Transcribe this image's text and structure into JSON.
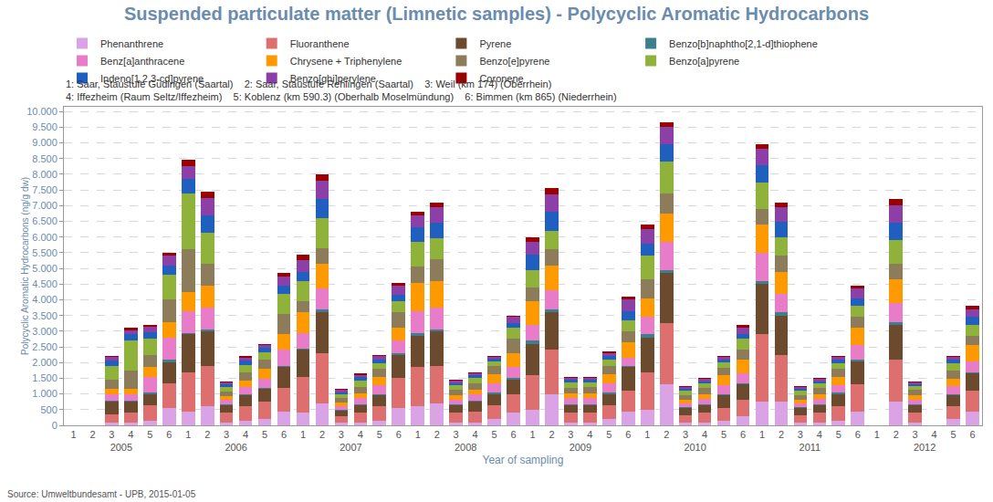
{
  "chart_data": {
    "type": "bar",
    "title": "Suspended particulate matter (Limnetic samples) - Polycyclic Aromatic Hydrocarbons",
    "x_label": "Year of sampling",
    "y_label": "Polycyclic Aromatic Hydrocarbons (ng/g dw)",
    "annotations": [
      "1: Saar, Staustufe Güdingen (Saartal)",
      "2: Saar, Staustufe Rehlingen (Saartal)",
      "3: Weil (km 174) (Oberrhein)",
      "4: Iffezheim (Raum Seltz/Iffezheim)",
      "5: Koblenz (km 590.3) (Oberhalb Moselmündung)",
      "6: Bimmen (km 865) (Niederrhein)"
    ],
    "source": "Source: Umweltbundesamt - UPB, 2015-01-05",
    "categories": [
      [
        "2005",
        "1"
      ],
      [
        "2005",
        "2"
      ],
      [
        "2005",
        "3"
      ],
      [
        "2005",
        "4"
      ],
      [
        "2005",
        "5"
      ],
      [
        "2005",
        "6"
      ],
      [
        "2006",
        "1"
      ],
      [
        "2006",
        "2"
      ],
      [
        "2006",
        "3"
      ],
      [
        "2006",
        "4"
      ],
      [
        "2006",
        "5"
      ],
      [
        "2006",
        "6"
      ],
      [
        "2007",
        "1"
      ],
      [
        "2007",
        "2"
      ],
      [
        "2007",
        "3"
      ],
      [
        "2007",
        "4"
      ],
      [
        "2007",
        "5"
      ],
      [
        "2007",
        "6"
      ],
      [
        "2008",
        "1"
      ],
      [
        "2008",
        "2"
      ],
      [
        "2008",
        "3"
      ],
      [
        "2008",
        "4"
      ],
      [
        "2008",
        "5"
      ],
      [
        "2008",
        "6"
      ],
      [
        "2009",
        "1"
      ],
      [
        "2009",
        "2"
      ],
      [
        "2009",
        "3"
      ],
      [
        "2009",
        "4"
      ],
      [
        "2009",
        "5"
      ],
      [
        "2009",
        "6"
      ],
      [
        "2010",
        "1"
      ],
      [
        "2010",
        "2"
      ],
      [
        "2010",
        "3"
      ],
      [
        "2010",
        "4"
      ],
      [
        "2010",
        "5"
      ],
      [
        "2010",
        "6"
      ],
      [
        "2011",
        "1"
      ],
      [
        "2011",
        "2"
      ],
      [
        "2011",
        "3"
      ],
      [
        "2011",
        "4"
      ],
      [
        "2011",
        "5"
      ],
      [
        "2011",
        "6"
      ],
      [
        "2012",
        "1"
      ],
      [
        "2012",
        "2"
      ],
      [
        "2012",
        "3"
      ],
      [
        "2012",
        "4"
      ],
      [
        "2012",
        "5"
      ],
      [
        "2012",
        "6"
      ]
    ],
    "series": [
      {
        "name": "Phenanthrene",
        "color": "#d9a3e6",
        "values": [
          null,
          null,
          100,
          100,
          150,
          550,
          450,
          600,
          100,
          150,
          200,
          450,
          400,
          700,
          80,
          100,
          150,
          550,
          600,
          700,
          100,
          100,
          200,
          400,
          500,
          1000,
          100,
          100,
          200,
          450,
          500,
          1300,
          80,
          100,
          150,
          300,
          750,
          750,
          80,
          100,
          150,
          450,
          null,
          750,
          100,
          null,
          200,
          450
        ]
      },
      {
        "name": "Fluoranthene",
        "color": "#de6f6f",
        "values": [
          null,
          null,
          250,
          300,
          500,
          800,
          1250,
          1300,
          300,
          450,
          550,
          750,
          1150,
          1600,
          200,
          300,
          450,
          950,
          1250,
          1200,
          300,
          350,
          450,
          600,
          1100,
          1400,
          300,
          300,
          450,
          650,
          1200,
          1950,
          250,
          300,
          400,
          500,
          2150,
          1500,
          250,
          300,
          450,
          850,
          null,
          1350,
          300,
          null,
          400,
          650
        ]
      },
      {
        "name": "Pyrene",
        "color": "#6b4a2e",
        "values": [
          null,
          null,
          400,
          350,
          350,
          650,
          1200,
          1100,
          250,
          350,
          400,
          650,
          850,
          1300,
          200,
          250,
          350,
          750,
          1000,
          1100,
          250,
          300,
          350,
          450,
          1000,
          1200,
          250,
          250,
          350,
          750,
          1100,
          1600,
          220,
          250,
          400,
          500,
          1600,
          1250,
          220,
          250,
          400,
          750,
          null,
          1100,
          250,
          null,
          350,
          550
        ]
      },
      {
        "name": "Benzo[b]naphtho[2,1-d]thiophene",
        "color": "#3d7f8c",
        "values": [
          null,
          null,
          30,
          30,
          50,
          100,
          50,
          50,
          20,
          30,
          40,
          50,
          50,
          100,
          20,
          30,
          40,
          50,
          100,
          50,
          20,
          30,
          40,
          50,
          100,
          100,
          20,
          30,
          40,
          50,
          100,
          100,
          20,
          30,
          40,
          50,
          100,
          100,
          20,
          30,
          40,
          50,
          null,
          100,
          20,
          null,
          40,
          50
        ]
      },
      {
        "name": "Benz[a]anthracene",
        "color": "#e87cc8",
        "values": [
          null,
          null,
          220,
          220,
          500,
          700,
          700,
          700,
          150,
          250,
          300,
          500,
          500,
          650,
          120,
          200,
          300,
          400,
          700,
          700,
          150,
          200,
          300,
          350,
          500,
          600,
          200,
          200,
          300,
          250,
          550,
          900,
          130,
          150,
          300,
          300,
          900,
          600,
          130,
          150,
          250,
          450,
          null,
          600,
          150,
          null,
          250,
          350
        ]
      },
      {
        "name": "Chrysene + Triphenylene",
        "color": "#ff9900",
        "values": [
          null,
          null,
          170,
          150,
          300,
          500,
          600,
          700,
          120,
          200,
          300,
          500,
          650,
          800,
          100,
          150,
          250,
          400,
          900,
          850,
          150,
          150,
          300,
          450,
          750,
          800,
          150,
          150,
          300,
          500,
          600,
          900,
          120,
          150,
          300,
          450,
          900,
          700,
          120,
          150,
          250,
          550,
          null,
          750,
          150,
          null,
          250,
          500
        ]
      },
      {
        "name": "Benzo[e]pyrene",
        "color": "#8c7c5a",
        "values": [
          null,
          null,
          280,
          600,
          400,
          700,
          1350,
          700,
          150,
          250,
          300,
          650,
          350,
          500,
          150,
          200,
          250,
          500,
          500,
          700,
          150,
          200,
          250,
          450,
          450,
          500,
          180,
          180,
          250,
          350,
          600,
          650,
          150,
          200,
          250,
          300,
          500,
          500,
          150,
          200,
          250,
          350,
          null,
          500,
          150,
          null,
          250,
          300
        ]
      },
      {
        "name": "Benzo[a]pyrene",
        "color": "#8fb23b",
        "values": [
          null,
          null,
          450,
          950,
          500,
          800,
          1800,
          1000,
          130,
          250,
          250,
          650,
          650,
          950,
          120,
          200,
          200,
          350,
          800,
          650,
          150,
          180,
          150,
          350,
          550,
          600,
          180,
          170,
          200,
          350,
          750,
          1000,
          130,
          150,
          180,
          350,
          850,
          600,
          130,
          150,
          200,
          350,
          null,
          750,
          130,
          null,
          250,
          350
        ]
      },
      {
        "name": "Indeno[1,2,3-cd]pyrene",
        "color": "#1f5fbf",
        "values": [
          null,
          null,
          170,
          200,
          220,
          300,
          450,
          550,
          80,
          130,
          120,
          250,
          300,
          600,
          70,
          100,
          110,
          200,
          450,
          500,
          80,
          90,
          70,
          150,
          500,
          600,
          80,
          80,
          120,
          300,
          400,
          550,
          70,
          80,
          80,
          150,
          550,
          500,
          70,
          80,
          100,
          250,
          null,
          550,
          70,
          null,
          100,
          250
        ]
      },
      {
        "name": "Benzo[ghi]perylene",
        "color": "#8c3fa6",
        "values": [
          null,
          null,
          100,
          130,
          160,
          300,
          400,
          550,
          70,
          100,
          100,
          300,
          350,
          600,
          60,
          80,
          110,
          300,
          400,
          500,
          70,
          70,
          60,
          200,
          400,
          550,
          60,
          60,
          100,
          350,
          450,
          550,
          50,
          60,
          70,
          200,
          500,
          450,
          50,
          60,
          80,
          300,
          null,
          550,
          50,
          null,
          80,
          250
        ]
      },
      {
        "name": "Coronene",
        "color": "#9b0000",
        "values": [
          null,
          null,
          30,
          70,
          70,
          100,
          200,
          200,
          30,
          40,
          40,
          100,
          200,
          200,
          30,
          40,
          40,
          100,
          100,
          150,
          30,
          30,
          30,
          50,
          150,
          200,
          30,
          30,
          40,
          100,
          150,
          150,
          30,
          30,
          30,
          100,
          150,
          150,
          30,
          30,
          30,
          100,
          null,
          200,
          30,
          null,
          30,
          100
        ]
      }
    ],
    "stacked": true,
    "ylim": [
      0,
      10150
    ],
    "yticks": [
      0,
      500,
      {
        "value": 1000,
        "label": "1.000"
      },
      {
        "value": 1500,
        "label": "1.500"
      },
      {
        "value": 2000,
        "label": "2.000"
      },
      {
        "value": 2500,
        "label": "2.500"
      },
      {
        "value": 3000,
        "label": "3.000"
      },
      {
        "value": 3500,
        "label": "3.500"
      },
      {
        "value": 4000,
        "label": "4.000"
      },
      {
        "value": 4500,
        "label": "4.500"
      },
      {
        "value": 5000,
        "label": "5.000"
      },
      {
        "value": 5500,
        "label": "5.500"
      },
      {
        "value": 6000,
        "label": "6.000"
      },
      {
        "value": 6500,
        "label": "6.500"
      },
      {
        "value": 7000,
        "label": "7.000"
      },
      {
        "value": 7500,
        "label": "7.500"
      },
      {
        "value": 8000,
        "label": "8.000"
      },
      {
        "value": 8500,
        "label": "8.500"
      },
      {
        "value": 9000,
        "label": "9.000"
      },
      {
        "value": 9500,
        "label": "9.500"
      },
      {
        "value": 10000,
        "label": "10.000"
      }
    ],
    "grid": true,
    "legend": "top"
  }
}
